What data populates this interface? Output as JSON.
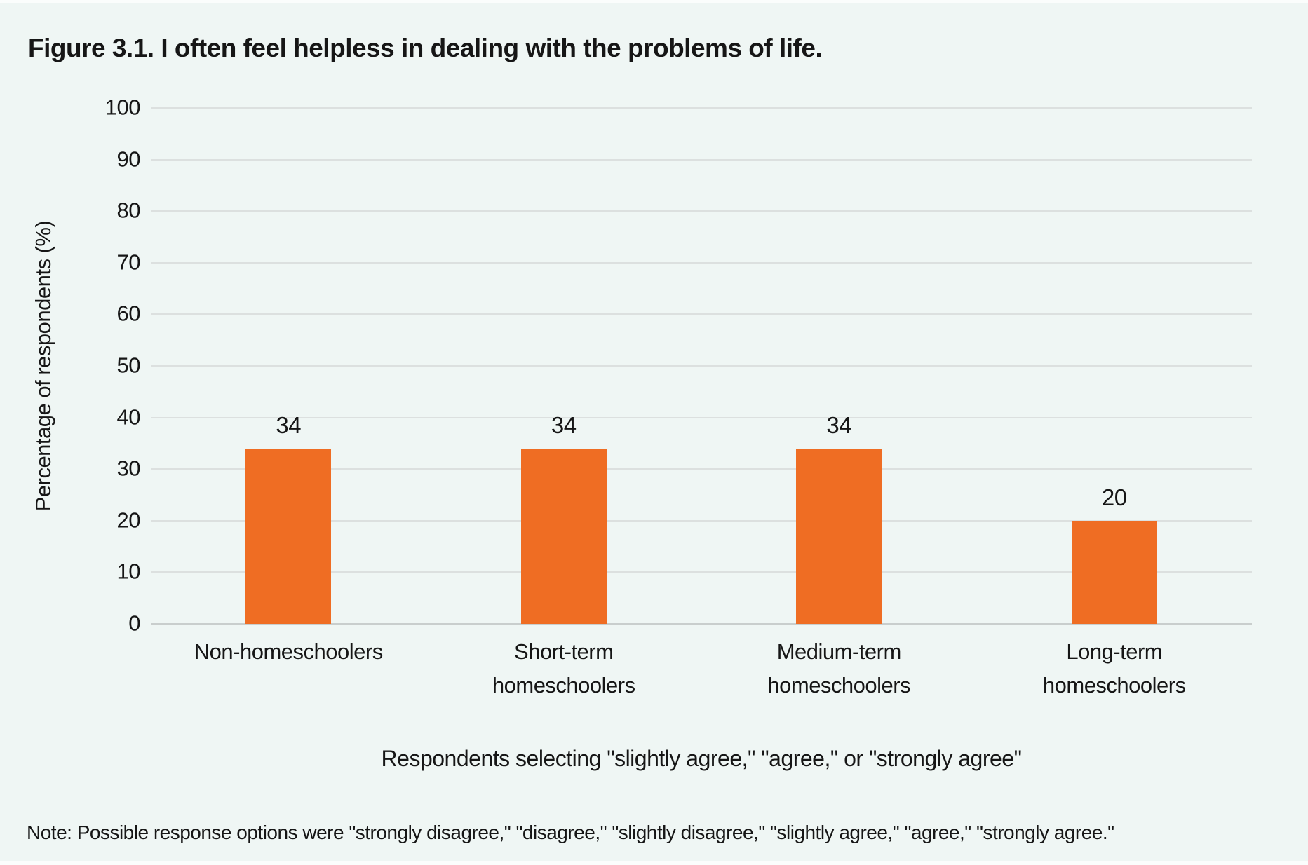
{
  "figure": {
    "title": "Figure 3.1. I often feel helpless in dealing with the problems of life."
  },
  "chart_data": {
    "type": "bar",
    "title": "Figure 3.1. I often feel helpless in dealing with the problems of life.",
    "categories": [
      "Non-homeschoolers",
      "Short-term homeschoolers",
      "Medium-term homeschoolers",
      "Long-term homeschoolers"
    ],
    "category_lines": [
      [
        "Non-homeschoolers"
      ],
      [
        "Short-term",
        "homeschoolers"
      ],
      [
        "Medium-term",
        "homeschoolers"
      ],
      [
        "Long-term",
        "homeschoolers"
      ]
    ],
    "values": [
      34,
      34,
      34,
      20
    ],
    "bar_labels": [
      "34",
      "34",
      "34",
      "20"
    ],
    "xlabel": "Respondents selecting \"slightly agree,\" \"agree,\" or \"strongly agree\"",
    "ylabel": "Percentage of respondents (%)",
    "ylim": [
      0,
      100
    ],
    "yticks": [
      0,
      10,
      20,
      30,
      40,
      50,
      60,
      70,
      80,
      90,
      100
    ],
    "grid": true,
    "legend": null,
    "colors": {
      "bar": "#EF6D23",
      "background": "#EFF6F4",
      "gridline": "#DCE0DF",
      "axis_line": "#C9CECD",
      "text": "#161616"
    }
  },
  "note": {
    "text": "Note: Possible response options were \"strongly disagree,\" \"disagree,\" \"slightly disagree,\" \"slightly agree,\" \"agree,\" \"strongly agree.\""
  }
}
